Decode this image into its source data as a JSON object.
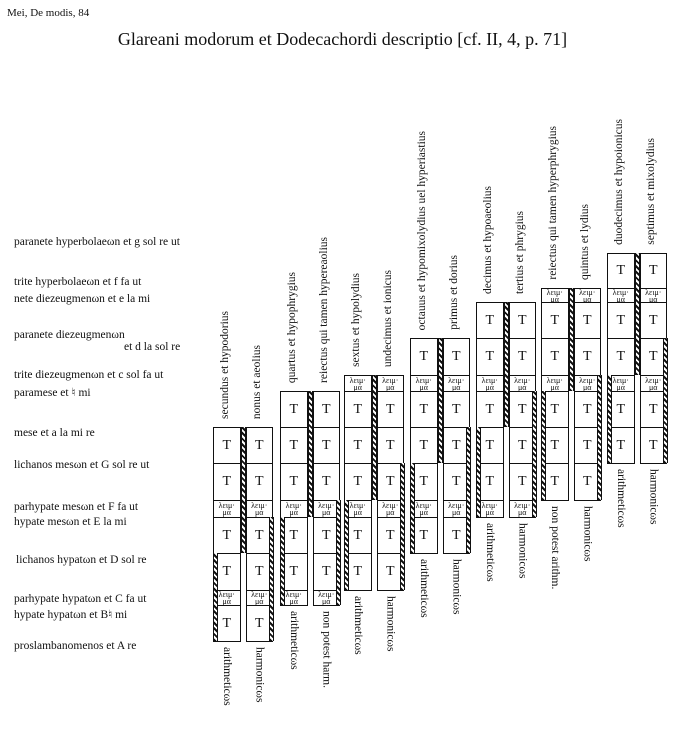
{
  "header": "Mei, De modis, 84",
  "title": "Glareani modorum et Dodecachordi descriptio [cf. II, 4, p. 71]",
  "notes": [
    "paranete hyperbolaeωn  et g sol re ut",
    "trite hyperbolaeωn  et f fa ut",
    "nete diezeugmenωn  et e la mi",
    "paranete diezeugmenωn",
    "et d la sol re",
    "trite diezeugmenωn  et c sol fa ut",
    "paramese et ♮ mi",
    "mese et  a la mi re",
    "lichanos mesωn  et G sol re ut",
    "parhypate mesωn  et F fa ut",
    "hypate mesωn  et E la mi",
    "lichanos hypatωn  et D sol re",
    "parhypate hypatωn  et C fa ut",
    "hypate hypatωn  et B♮ mi",
    "proslambanomenos  et A re"
  ],
  "cell_labels": {
    "tone": "T",
    "leimma_top": "λειμ·",
    "leimma_bottom": "μα"
  },
  "columns": [
    {
      "modes": [
        "secundus et hypodorius",
        "nonus et aeolius"
      ],
      "divisions": [
        "arithmeticωs",
        "harmonicωs"
      ],
      "cells": [
        "T",
        "T",
        "L",
        "T",
        "T",
        "L",
        "T"
      ]
    },
    {
      "modes": [
        "quartus et hypophrygius",
        "reiectus qui tamen hypereaolius"
      ],
      "divisions": [
        "arithmeticωs",
        "non potest harm."
      ],
      "cells": [
        "T",
        "T",
        "T",
        "L",
        "T",
        "T",
        "L"
      ]
    },
    {
      "modes": [
        "sextus et hypolydius",
        "undecimus et ionicus"
      ],
      "divisions": [
        "arithmeticωs",
        "harmonicωs"
      ],
      "cells": [
        "L",
        "T",
        "T",
        "T",
        "L",
        "T",
        "T"
      ]
    },
    {
      "modes": [
        "octauus et hypomixolydius uel hyperiastius",
        "primus et dorius"
      ],
      "divisions": [
        "arithmeticωs",
        "harmonicωs"
      ],
      "cells": [
        "T",
        "L",
        "T",
        "T",
        "T",
        "L",
        "T"
      ]
    },
    {
      "modes": [
        "decimus et hypoaeolius",
        "tertius et phrygius"
      ],
      "divisions": [
        "arithmeticωs",
        "harmonicωs"
      ],
      "cells": [
        "T",
        "T",
        "L",
        "T",
        "T",
        "T",
        "L"
      ]
    },
    {
      "modes": [
        "reiectus qui tamen hyperphrygius",
        "quintus et lydius"
      ],
      "divisions": [
        "non potest arithm.",
        "harmonicωs"
      ],
      "cells": [
        "L",
        "T",
        "T",
        "L",
        "T",
        "T",
        "T"
      ]
    },
    {
      "modes": [
        "duodecimus et hypoionicus",
        "septimus et   mixolydius"
      ],
      "divisions": [
        "arithmeticωs",
        "harmonicωs"
      ],
      "cells": [
        "T",
        "L",
        "T",
        "T",
        "L",
        "T",
        "T"
      ]
    }
  ]
}
